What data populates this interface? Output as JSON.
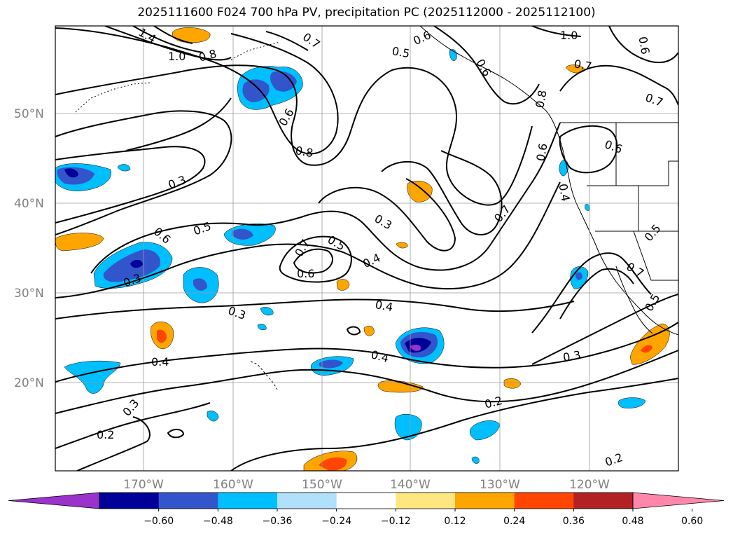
{
  "title": "2025111600 F024 700 hPa PV, precipitation PC (2025112000 - 2025112100)",
  "map": {
    "projection": "Lambert conformal",
    "region": "North-East Pacific Ocean and western North America",
    "lat_labels": [
      "20°N",
      "30°N",
      "40°N",
      "50°N"
    ],
    "lon_labels": [
      "170°W",
      "160°W",
      "150°W",
      "140°W",
      "130°W",
      "120°W"
    ],
    "gridlines": true,
    "pv_contour_labels": [
      "1.4",
      "1.0",
      "0.8",
      "0.7",
      "0.6",
      "0.5",
      "0.6",
      "1.0",
      "0.6",
      "0.7",
      "0.8",
      "0.6",
      "0.8",
      "0.7",
      "0.6",
      "0.4",
      "0.3",
      "0.6",
      "0.5",
      "0.3",
      "0.5",
      "0.4",
      "0.3",
      "0.7",
      "0.6",
      "0.3",
      "0.4",
      "0.7",
      "0.5",
      "0.6",
      "0.4",
      "0.4",
      "0.3",
      "0.2",
      "0.3",
      "0.2",
      "0.7",
      "0.5",
      "0.2"
    ]
  },
  "colorbar": {
    "ticks": [
      "−0.60",
      "−0.48",
      "−0.36",
      "−0.24",
      "−0.12",
      "0.12",
      "0.24",
      "0.36",
      "0.48",
      "0.60"
    ],
    "colors": [
      "#9933cc",
      "#000099",
      "#3355cc",
      "#00bfff",
      "#b0e0fa",
      "#ffffff",
      "#ffe680",
      "#ffa500",
      "#ff4500",
      "#b22222",
      "#ff88aa"
    ],
    "extend": "both"
  },
  "precip_colors": {
    "neg_strong": "#000099",
    "neg_mod": "#3355cc",
    "neg_weak": "#00bfff",
    "pos_weak": "#ffa500",
    "pos_mod": "#ff4500",
    "pos_strong": "#b22222",
    "extreme_neg": "#9933cc"
  }
}
